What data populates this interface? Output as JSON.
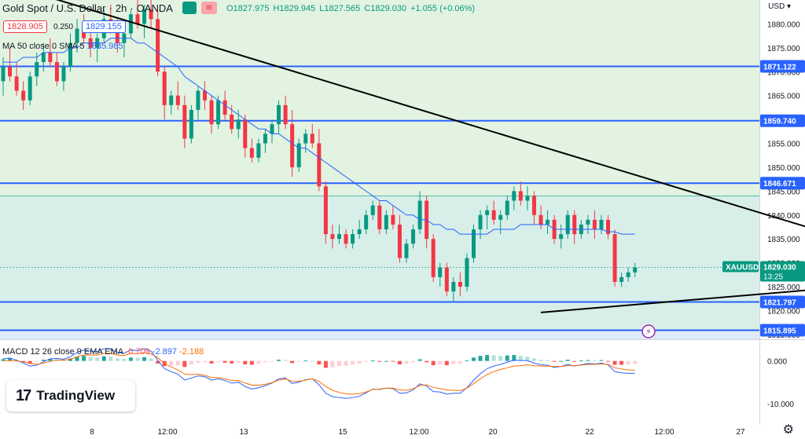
{
  "header": {
    "symbol": "Gold Spot / U.S. Dollar",
    "interval": "2h",
    "exchange": "OANDA",
    "open_label": "O1827.975",
    "high_label": "H1829.945",
    "low_label": "L1827.565",
    "close_label": "C1829.030",
    "change_label": "+1.055 (+0.06%)",
    "sell_price": "1828.905",
    "buy_price": "1829.155",
    "spread": "0.250"
  },
  "indicators": {
    "ma_label": "MA 50 close 0 SMA 5",
    "ma_value": "1835.985",
    "macd_label": "MACD 12 26 close 9 EMA EMA",
    "macd_hist": "-0.709",
    "macd_line": "-2.897",
    "macd_signal": "-2.188"
  },
  "branding": {
    "logo_text": "TradingView",
    "logo_mark": "17"
  },
  "axis": {
    "currency": "USD"
  },
  "icons": [
    "lightning-icon",
    "gear-icon"
  ],
  "colors": {
    "up": "#089981",
    "down": "#f23645",
    "level_line": "#2962ff",
    "ma": "#2962ff",
    "trendline": "#000000",
    "macd_signal": "#ff6d00"
  },
  "chart_data": {
    "type": "candlestick",
    "symbol": "XAUUSD",
    "last_price": "1829.030",
    "countdown": "13:25",
    "ylim": [
      1814,
      1885
    ],
    "y_ticks": [
      1880,
      1875,
      1870,
      1865,
      1860,
      1855,
      1850,
      1845,
      1840,
      1835,
      1830,
      1825,
      1820,
      1815
    ],
    "y_tick_labels": [
      "1880.000",
      "1875.000",
      "1870.000",
      "1865.000",
      "1860.000",
      "1855.000",
      "1850.000",
      "1845.000",
      "1840.000",
      "1835.000",
      "1830.000",
      "1825.000",
      "1820.000",
      "1815.000"
    ],
    "x_tick_labels": [
      "8",
      "12:00",
      "13",
      "15",
      "12:00",
      "20",
      "22",
      "12:00",
      "27"
    ],
    "horizontal_levels": [
      1871.122,
      1859.74,
      1846.671,
      1821.797,
      1815.895
    ],
    "horizontal_level_labels": [
      "1871.122",
      "1859.740",
      "1846.671",
      "1821.797",
      "1815.895"
    ],
    "trendlines": [
      {
        "name": "upper",
        "points": [
          [
            0,
            1888.5
          ],
          [
            136,
            1830.5
          ]
        ]
      },
      {
        "name": "lower",
        "points": [
          [
            80,
            1819.6
          ],
          [
            136,
            1826.2
          ]
        ]
      }
    ],
    "candles": [
      [
        1868,
        1873,
        1865,
        1871
      ],
      [
        1871,
        1875,
        1868,
        1869
      ],
      [
        1869,
        1872,
        1865,
        1866
      ],
      [
        1866,
        1868,
        1862,
        1864
      ],
      [
        1864,
        1870,
        1863,
        1869
      ],
      [
        1869,
        1874,
        1867,
        1872
      ],
      [
        1872,
        1876,
        1870,
        1874
      ],
      [
        1874,
        1877,
        1871,
        1872
      ],
      [
        1872,
        1874,
        1867,
        1868
      ],
      [
        1868,
        1872,
        1866,
        1871
      ],
      [
        1871,
        1878,
        1870,
        1876
      ],
      [
        1876,
        1881,
        1874,
        1879
      ],
      [
        1879,
        1882,
        1876,
        1877
      ],
      [
        1877,
        1880,
        1873,
        1875
      ],
      [
        1875,
        1878,
        1872,
        1877
      ],
      [
        1877,
        1883,
        1876,
        1881
      ],
      [
        1881,
        1884,
        1878,
        1879
      ],
      [
        1879,
        1881,
        1874,
        1876
      ],
      [
        1876,
        1879,
        1873,
        1878
      ],
      [
        1878,
        1883,
        1877,
        1882
      ],
      [
        1882,
        1885,
        1879,
        1880
      ],
      [
        1880,
        1884,
        1877,
        1883
      ],
      [
        1883,
        1885,
        1879,
        1881
      ],
      [
        1881,
        1883,
        1869,
        1870
      ],
      [
        1870,
        1871,
        1860,
        1863
      ],
      [
        1863,
        1866,
        1861,
        1865
      ],
      [
        1865,
        1868,
        1862,
        1863
      ],
      [
        1863,
        1865,
        1854,
        1856
      ],
      [
        1856,
        1863,
        1855,
        1862
      ],
      [
        1862,
        1867,
        1860,
        1866
      ],
      [
        1866,
        1868,
        1862,
        1864
      ],
      [
        1864,
        1865,
        1857,
        1859
      ],
      [
        1859,
        1865,
        1858,
        1864
      ],
      [
        1864,
        1866,
        1860,
        1861
      ],
      [
        1861,
        1863,
        1857,
        1858
      ],
      [
        1858,
        1862,
        1856,
        1860
      ],
      [
        1860,
        1861,
        1852,
        1854
      ],
      [
        1854,
        1856,
        1851,
        1852
      ],
      [
        1852,
        1856,
        1851,
        1855
      ],
      [
        1855,
        1858,
        1853,
        1857
      ],
      [
        1857,
        1860,
        1855,
        1859
      ],
      [
        1859,
        1864,
        1857,
        1863
      ],
      [
        1863,
        1865,
        1858,
        1859
      ],
      [
        1859,
        1862,
        1848,
        1850
      ],
      [
        1850,
        1856,
        1849,
        1855
      ],
      [
        1855,
        1858,
        1853,
        1857
      ],
      [
        1857,
        1859,
        1854,
        1855
      ],
      [
        1855,
        1858,
        1845,
        1846
      ],
      [
        1846,
        1847,
        1834,
        1836
      ],
      [
        1836,
        1838,
        1833,
        1835
      ],
      [
        1835,
        1838,
        1834,
        1836
      ],
      [
        1836,
        1837,
        1833,
        1834
      ],
      [
        1834,
        1837,
        1833,
        1836
      ],
      [
        1836,
        1839,
        1835,
        1837
      ],
      [
        1837,
        1841,
        1836,
        1840
      ],
      [
        1840,
        1843,
        1839,
        1842
      ],
      [
        1842,
        1843,
        1836,
        1837
      ],
      [
        1837,
        1841,
        1836,
        1840
      ],
      [
        1840,
        1842,
        1837,
        1838
      ],
      [
        1838,
        1840,
        1830,
        1831
      ],
      [
        1831,
        1835,
        1830,
        1834
      ],
      [
        1834,
        1838,
        1833,
        1837
      ],
      [
        1837,
        1845,
        1836,
        1843
      ],
      [
        1843,
        1844,
        1833,
        1835
      ],
      [
        1835,
        1836,
        1826,
        1827
      ],
      [
        1827,
        1830,
        1825,
        1829
      ],
      [
        1829,
        1830,
        1823,
        1824
      ],
      [
        1824,
        1827,
        1822,
        1826
      ],
      [
        1826,
        1828,
        1823,
        1825
      ],
      [
        1825,
        1832,
        1824,
        1831
      ],
      [
        1831,
        1838,
        1830,
        1837
      ],
      [
        1837,
        1841,
        1835,
        1840
      ],
      [
        1840,
        1842,
        1837,
        1841
      ],
      [
        1841,
        1843,
        1838,
        1839
      ],
      [
        1839,
        1841,
        1836,
        1840
      ],
      [
        1840,
        1844,
        1839,
        1843
      ],
      [
        1843,
        1846,
        1841,
        1845
      ],
      [
        1845,
        1847,
        1842,
        1843
      ],
      [
        1843,
        1846,
        1841,
        1844
      ],
      [
        1844,
        1845,
        1838,
        1840
      ],
      [
        1840,
        1842,
        1837,
        1838
      ],
      [
        1838,
        1841,
        1836,
        1839
      ],
      [
        1839,
        1840,
        1834,
        1835
      ],
      [
        1835,
        1838,
        1833,
        1836
      ],
      [
        1836,
        1841,
        1835,
        1840
      ],
      [
        1840,
        1841,
        1834,
        1836
      ],
      [
        1836,
        1839,
        1835,
        1838
      ],
      [
        1838,
        1840,
        1836,
        1839
      ],
      [
        1839,
        1841,
        1835,
        1837
      ],
      [
        1837,
        1840,
        1836,
        1839
      ],
      [
        1839,
        1840,
        1835,
        1836
      ],
      [
        1836,
        1837,
        1825,
        1826
      ],
      [
        1826,
        1828,
        1825,
        1827
      ],
      [
        1827,
        1829,
        1826,
        1828
      ],
      [
        1828,
        1830,
        1827,
        1829
      ]
    ],
    "ma_series": [
      1872,
      1872,
      1872,
      1873,
      1873,
      1873,
      1874,
      1874,
      1874,
      1874,
      1875,
      1875,
      1876,
      1876,
      1876,
      1876,
      1877,
      1877,
      1877,
      1877,
      1876,
      1876,
      1875,
      1874,
      1873,
      1872,
      1871,
      1869,
      1868,
      1867,
      1866,
      1865,
      1864,
      1863,
      1862,
      1861,
      1860,
      1859,
      1858,
      1858,
      1857,
      1857,
      1856,
      1855,
      1854,
      1854,
      1853,
      1852,
      1851,
      1850,
      1849,
      1848,
      1847,
      1846,
      1845,
      1844,
      1843,
      1843,
      1842,
      1841,
      1840,
      1840,
      1839,
      1839,
      1838,
      1838,
      1837,
      1837,
      1836,
      1836,
      1836,
      1836,
      1836,
      1837,
      1837,
      1837,
      1837,
      1838,
      1838,
      1838,
      1838,
      1838,
      1837,
      1837,
      1837,
      1837,
      1837,
      1837,
      1837,
      1837,
      1836.5,
      1836.5,
      1836,
      1836,
      1836
    ],
    "macd": {
      "ylim": [
        -13,
        4
      ],
      "y_tick_labels": [
        "0.000",
        "-10.000"
      ],
      "y_ticks": [
        0,
        -10
      ],
      "histogram": [
        0.4,
        0.6,
        0.2,
        -0.3,
        -0.6,
        -0.2,
        0.3,
        0.5,
        0.4,
        0.2,
        0.6,
        1.0,
        1.2,
        0.9,
        0.8,
        1.1,
        1.0,
        0.6,
        0.5,
        0.8,
        0.7,
        0.9,
        0.6,
        -0.6,
        -1.2,
        -1.1,
        -1.0,
        -1.4,
        -0.8,
        -0.4,
        -0.3,
        -0.6,
        -0.3,
        -0.4,
        -0.6,
        -0.4,
        -0.8,
        -0.9,
        -0.6,
        -0.3,
        -0.1,
        0.3,
        0.2,
        -0.5,
        -0.2,
        0.1,
        0.0,
        -0.8,
        -1.6,
        -1.5,
        -1.2,
        -1.1,
        -0.8,
        -0.6,
        -0.2,
        0.1,
        -0.1,
        0.0,
        -0.1,
        -0.8,
        -0.6,
        -0.3,
        0.4,
        -0.3,
        -1.0,
        -0.8,
        -1.0,
        -0.7,
        -0.6,
        0.1,
        0.8,
        1.2,
        1.4,
        1.3,
        1.2,
        1.3,
        1.4,
        1.2,
        1.0,
        0.6,
        0.3,
        0.2,
        -0.2,
        0.0,
        0.3,
        -0.1,
        0.1,
        0.2,
        0.1,
        0.2,
        -0.1,
        -0.9,
        -0.9,
        -0.8,
        -0.7
      ],
      "macd_line": [
        0.5,
        0.7,
        0.2,
        -0.5,
        -1.2,
        -1.0,
        -0.2,
        0.5,
        0.6,
        0.4,
        1.0,
        2.0,
        2.6,
        2.3,
        2.2,
        2.9,
        2.8,
        2.0,
        1.8,
        2.6,
        2.4,
        2.9,
        2.3,
        0.2,
        -1.8,
        -2.5,
        -3.1,
        -4.5,
        -4.0,
        -3.5,
        -3.7,
        -4.5,
        -4.2,
        -4.6,
        -5.2,
        -5.0,
        -6.0,
        -6.6,
        -6.3,
        -5.8,
        -5.2,
        -4.2,
        -4.0,
        -5.3,
        -5.0,
        -4.4,
        -4.2,
        -5.6,
        -7.6,
        -8.4,
        -8.6,
        -8.8,
        -8.6,
        -8.3,
        -7.5,
        -6.6,
        -6.7,
        -6.4,
        -6.5,
        -7.6,
        -7.5,
        -6.8,
        -5.4,
        -5.9,
        -7.2,
        -7.3,
        -7.8,
        -7.6,
        -7.6,
        -6.3,
        -4.5,
        -3.0,
        -1.8,
        -1.2,
        -0.8,
        -0.3,
        0.2,
        0.1,
        0.1,
        -0.5,
        -0.9,
        -1.0,
        -1.5,
        -1.3,
        -0.8,
        -1.2,
        -0.9,
        -0.6,
        -0.7,
        -0.5,
        -0.9,
        -2.5,
        -2.8,
        -2.9,
        -2.9
      ],
      "signal_line": [
        0.1,
        0.1,
        0.0,
        -0.2,
        -0.6,
        -0.8,
        -0.5,
        -0.1,
        0.2,
        0.2,
        0.4,
        1.0,
        1.4,
        1.4,
        1.4,
        1.8,
        1.8,
        1.4,
        1.3,
        1.8,
        1.7,
        2.0,
        1.7,
        0.8,
        -0.6,
        -1.4,
        -2.1,
        -3.1,
        -3.2,
        -3.1,
        -3.4,
        -3.9,
        -3.9,
        -4.2,
        -4.6,
        -4.6,
        -5.2,
        -5.7,
        -5.7,
        -5.5,
        -5.1,
        -4.5,
        -4.2,
        -4.8,
        -4.8,
        -4.5,
        -4.2,
        -4.8,
        -6.0,
        -6.9,
        -7.4,
        -7.7,
        -7.8,
        -7.7,
        -7.3,
        -6.7,
        -6.6,
        -6.4,
        -6.4,
        -6.8,
        -6.9,
        -6.5,
        -5.8,
        -5.6,
        -6.2,
        -6.5,
        -6.8,
        -6.9,
        -7.0,
        -6.4,
        -5.3,
        -4.2,
        -3.2,
        -2.5,
        -2.0,
        -1.6,
        -1.2,
        -1.1,
        -0.9,
        -1.1,
        -1.2,
        -1.2,
        -1.3,
        -1.3,
        -1.1,
        -1.1,
        -1.0,
        -0.8,
        -0.8,
        -0.7,
        -0.8,
        -1.6,
        -1.9,
        -2.1,
        -2.2
      ]
    }
  }
}
